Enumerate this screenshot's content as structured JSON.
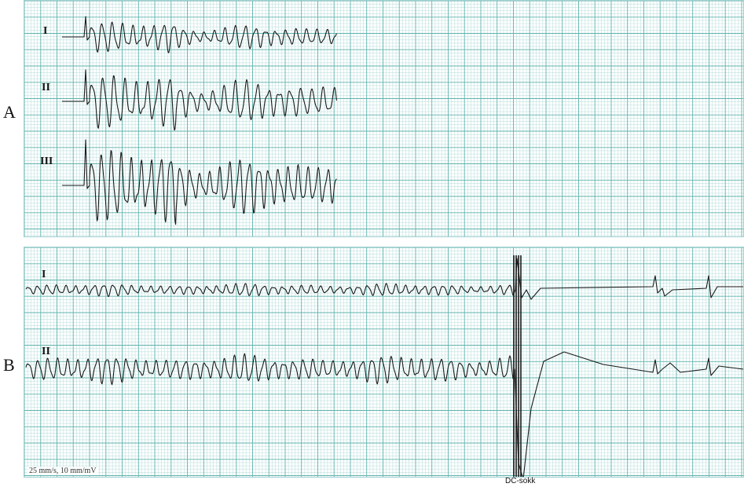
{
  "panels": [
    {
      "letter": "A",
      "leads": [
        "I",
        "II",
        "III"
      ]
    },
    {
      "letter": "B",
      "leads": [
        "I",
        "II"
      ]
    }
  ],
  "footnote": "25 mm/s, 10 mm/mV",
  "marker_label": "DC-sokk",
  "colors": {
    "grid_minor": "#bfe2df",
    "grid_major": "#5fb3ad",
    "trace": "#1a1a1a"
  }
}
